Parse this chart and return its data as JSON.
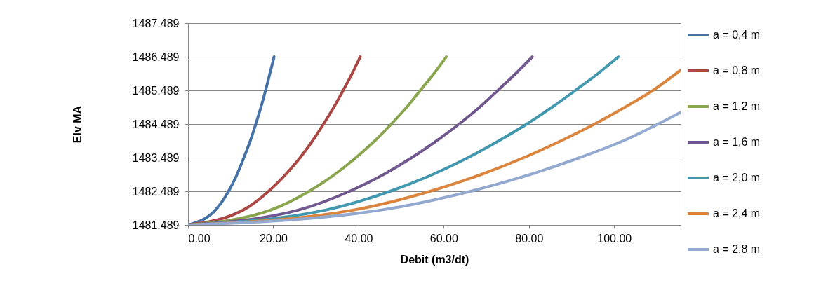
{
  "chart_data": {
    "type": "line",
    "xlabel": "Debit (m3/dt)",
    "ylabel": "Elv MA",
    "xlim": [
      0,
      115.6
    ],
    "xticks": [
      {
        "value": 0,
        "label": "0.00"
      },
      {
        "value": 20,
        "label": "20.00"
      },
      {
        "value": 40,
        "label": "40.00"
      },
      {
        "value": 60,
        "label": "60.00"
      },
      {
        "value": 80,
        "label": "80.00"
      },
      {
        "value": 100,
        "label": "100.00"
      }
    ],
    "ylim": [
      1481.489,
      1487.489
    ],
    "yticks": [
      1481.489,
      1482.489,
      1483.489,
      1484.489,
      1485.489,
      1486.489,
      1487.489
    ],
    "grid": "y",
    "legend": "right",
    "marker": "none",
    "line_style": "solid",
    "series": [
      {
        "name": "a = 0,4 m",
        "color": "#4572a7",
        "x": [
          0,
          6.4,
          9.5,
          11.5,
          13.1,
          14.6,
          15.9,
          17.1,
          18.2,
          19.2,
          20.2
        ],
        "values": [
          1481.489,
          1481.929,
          1482.489,
          1482.989,
          1483.489,
          1483.989,
          1484.489,
          1484.989,
          1485.489,
          1485.989,
          1486.489
        ]
      },
      {
        "name": "a = 0,8 m",
        "color": "#aa4643",
        "x": [
          0,
          12.9,
          18.9,
          22.9,
          26.3,
          29.2,
          31.8,
          34.2,
          36.4,
          38.5,
          40.4
        ],
        "values": [
          1481.489,
          1481.929,
          1482.489,
          1482.989,
          1483.489,
          1483.989,
          1484.489,
          1484.989,
          1485.489,
          1485.989,
          1486.489
        ]
      },
      {
        "name": "a = 1,2 m",
        "color": "#89a54e",
        "x": [
          0,
          19.3,
          28.4,
          34.4,
          39.4,
          43.8,
          47.7,
          51.3,
          54.5,
          57.7,
          60.6
        ],
        "values": [
          1481.489,
          1481.929,
          1482.489,
          1482.989,
          1483.489,
          1483.989,
          1484.489,
          1484.989,
          1485.489,
          1485.989,
          1486.489
        ]
      },
      {
        "name": "a = 1,6 m",
        "color": "#71588f",
        "x": [
          0,
          25.8,
          37.9,
          45.9,
          52.5,
          58.3,
          63.6,
          68.4,
          72.7,
          76.9,
          80.8
        ],
        "values": [
          1481.489,
          1481.929,
          1482.489,
          1482.989,
          1483.489,
          1483.989,
          1484.489,
          1484.989,
          1485.489,
          1485.989,
          1486.489
        ]
      },
      {
        "name": "a = 2,0 m",
        "color": "#4198af",
        "x": [
          0,
          32.2,
          47.4,
          57.4,
          65.7,
          72.9,
          79.5,
          85.4,
          90.9,
          96.2,
          101
        ],
        "values": [
          1481.489,
          1481.929,
          1482.489,
          1482.989,
          1483.489,
          1483.989,
          1484.489,
          1484.989,
          1485.489,
          1485.989,
          1486.489
        ]
      },
      {
        "name": "a = 2,4 m",
        "color": "#db843d",
        "x": [
          0,
          38.7,
          56.8,
          68.8,
          78.8,
          87.5,
          95.4,
          102.5,
          109.1,
          115.6
        ],
        "values": [
          1481.489,
          1481.929,
          1482.489,
          1482.989,
          1483.489,
          1483.989,
          1484.489,
          1484.989,
          1485.489,
          1486.089
        ]
      },
      {
        "name": "a = 2,8 m",
        "color": "#93a9cf",
        "x": [
          0,
          45.1,
          66.3,
          80.3,
          91.9,
          102.1,
          115.6
        ],
        "values": [
          1481.489,
          1481.929,
          1482.489,
          1482.989,
          1483.489,
          1483.989,
          1484.839
        ]
      }
    ]
  }
}
